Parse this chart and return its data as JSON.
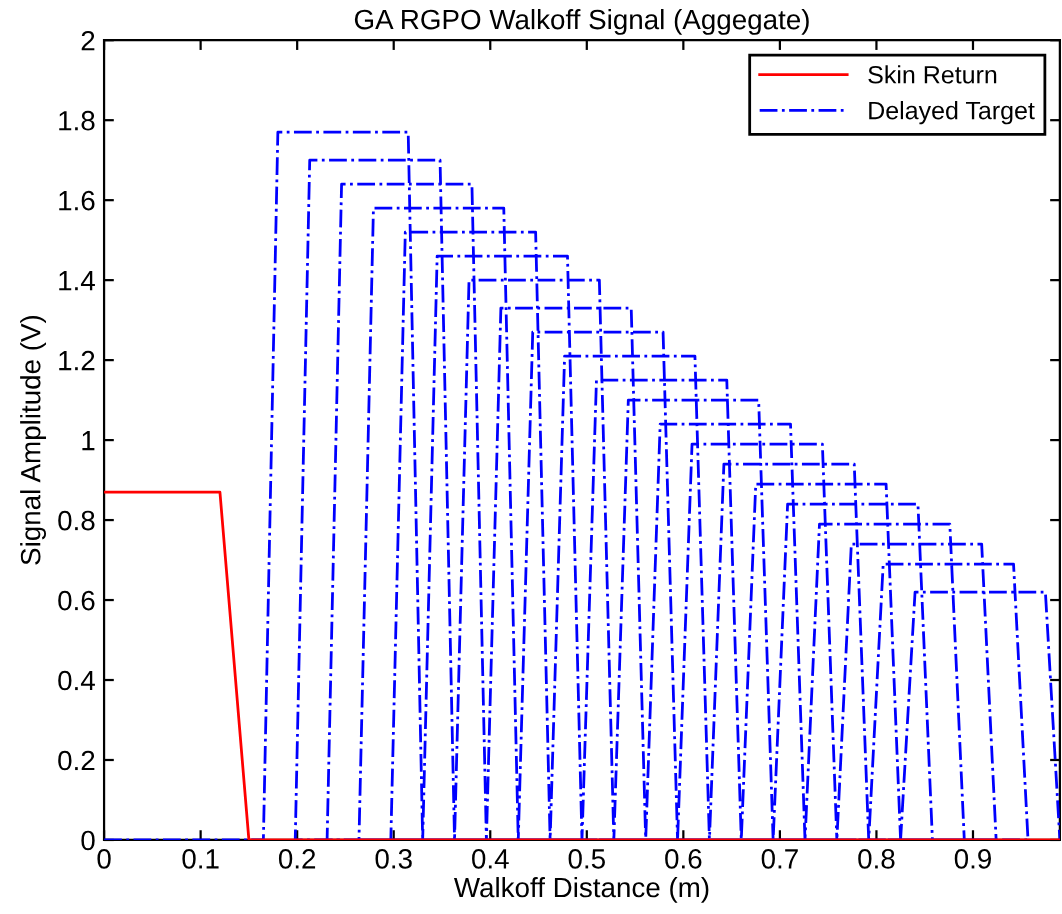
{
  "chart_data": {
    "type": "line",
    "title": "GA RGPO Walkoff Signal (Aggegate)",
    "xlabel": "Walkoff Distance (m)",
    "ylabel": "Signal Amplitude (V)",
    "xlim": [
      0,
      0.99
    ],
    "ylim": [
      0,
      2
    ],
    "xticks": [
      0,
      0.1,
      0.2,
      0.3,
      0.4,
      0.5,
      0.6,
      0.7,
      0.8,
      0.9
    ],
    "yticks": [
      0,
      0.2,
      0.4,
      0.6,
      0.8,
      1,
      1.2,
      1.4,
      1.6,
      1.8,
      2
    ],
    "grid": false,
    "legend": "top right",
    "series": [
      {
        "name": "Skin Return",
        "color": "#ff0000",
        "line_style": "solid",
        "x": [
          0,
          0.12,
          0.15,
          0.99
        ],
        "values": [
          0.87,
          0.87,
          0,
          0
        ]
      },
      {
        "name": "Delayed Target",
        "color": "#0000ff",
        "line_style": "dashdot",
        "x": [
          0,
          0.165,
          0.18,
          0.315,
          0.33,
          0.198,
          0.213,
          0.348,
          0.363,
          0.231,
          0.246,
          0.381,
          0.396,
          0.264,
          0.279,
          0.414,
          0.429,
          0.297,
          0.312,
          0.447,
          0.462,
          0.33,
          0.345,
          0.48,
          0.495,
          0.363,
          0.378,
          0.513,
          0.528,
          0.396,
          0.411,
          0.546,
          0.561,
          0.429,
          0.444,
          0.579,
          0.594,
          0.462,
          0.477,
          0.612,
          0.627,
          0.495,
          0.51,
          0.645,
          0.66,
          0.528,
          0.543,
          0.678,
          0.693,
          0.561,
          0.576,
          0.711,
          0.726,
          0.594,
          0.609,
          0.744,
          0.759,
          0.627,
          0.642,
          0.777,
          0.792,
          0.66,
          0.675,
          0.81,
          0.825,
          0.693,
          0.708,
          0.843,
          0.858,
          0.726,
          0.741,
          0.876,
          0.891,
          0.759,
          0.774,
          0.909,
          0.924,
          0.792,
          0.807,
          0.942,
          0.957,
          0.825,
          0.84,
          0.975,
          0.99
        ],
        "values": [
          0,
          0,
          1.77,
          1.77,
          0,
          0,
          1.7,
          1.7,
          0,
          0,
          1.64,
          1.64,
          0,
          0,
          1.58,
          1.58,
          0,
          0,
          1.52,
          1.52,
          0,
          0,
          1.46,
          1.46,
          0,
          0,
          1.4,
          1.4,
          0,
          0,
          1.33,
          1.33,
          0,
          0,
          1.27,
          1.27,
          0,
          0,
          1.21,
          1.21,
          0,
          0,
          1.15,
          1.15,
          0,
          0,
          1.1,
          1.1,
          0,
          0,
          1.04,
          1.04,
          0,
          0,
          0.99,
          0.99,
          0,
          0,
          0.94,
          0.94,
          0,
          0,
          0.89,
          0.89,
          0,
          0,
          0.84,
          0.84,
          0,
          0,
          0.79,
          0.79,
          0,
          0,
          0.74,
          0.74,
          0,
          0,
          0.69,
          0.69,
          0,
          0,
          0.62,
          0.62,
          0
        ]
      }
    ]
  }
}
